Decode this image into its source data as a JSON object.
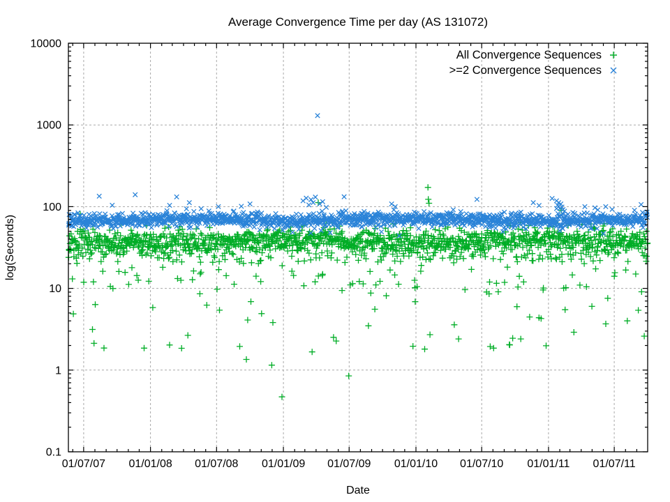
{
  "chart_data": {
    "type": "scatter",
    "title": "Average Convergence Time per day (AS 131072)",
    "xlabel": "Date",
    "ylabel": "log(Seconds)",
    "y_scale": "log",
    "ylim": [
      0.1,
      10000
    ],
    "grid": true,
    "background": "#ffffff",
    "axis_color": "#000000",
    "grid_color": "#a8a8a8",
    "x_start_date": "2007-05-20",
    "x_end_date": "2011-10-01",
    "x_ticks": [
      {
        "label": "01/07/07",
        "date": "2007-07-01"
      },
      {
        "label": "01/01/08",
        "date": "2008-01-01"
      },
      {
        "label": "01/07/08",
        "date": "2008-07-01"
      },
      {
        "label": "01/01/09",
        "date": "2009-01-01"
      },
      {
        "label": "01/07/09",
        "date": "2009-07-01"
      },
      {
        "label": "01/01/10",
        "date": "2010-01-01"
      },
      {
        "label": "01/07/10",
        "date": "2010-07-01"
      },
      {
        "label": "01/01/11",
        "date": "2011-01-01"
      },
      {
        "label": "01/07/11",
        "date": "2011-07-01"
      }
    ],
    "y_ticks": [
      {
        "label": "10000",
        "value": 10000
      },
      {
        "label": "1000",
        "value": 1000
      },
      {
        "label": "100",
        "value": 100
      },
      {
        "label": "10",
        "value": 10
      },
      {
        "label": "1",
        "value": 1
      },
      {
        "label": "0.1",
        "value": 0.1
      }
    ],
    "legend": {
      "position": "top-right-inside"
    },
    "series": [
      {
        "name": "All Convergence Sequences",
        "marker": "plus",
        "color": "#00AD26",
        "count": 1560,
        "seed": 91,
        "band": {
          "center_seconds": 38,
          "log10_sigma": 0.075,
          "drift_amp": 0.04,
          "drift_period_days": 680,
          "drift_phase": 2.0
        },
        "outliers": [
          {
            "prob": 0.1,
            "range": [
              21,
              33
            ]
          },
          {
            "prob": 0.065,
            "range": [
              9.5,
              26
            ]
          },
          {
            "prob": 0.034,
            "range": [
              1.6,
              9.5
            ]
          },
          {
            "prob": 0.004,
            "range": [
              55,
              95
            ]
          }
        ],
        "extra_points": [
          {
            "date": "2009-04-07",
            "value": 112
          },
          {
            "date": "2010-02-03",
            "value": 172
          },
          {
            "date": "2010-02-04",
            "value": 123
          },
          {
            "date": "2010-02-06",
            "value": 110
          },
          {
            "date": "2011-02-05",
            "value": 90
          },
          {
            "date": "2008-09-21",
            "value": 1.35
          },
          {
            "date": "2008-11-30",
            "value": 1.15
          },
          {
            "date": "2008-12-28",
            "value": 0.47
          },
          {
            "date": "2009-06-30",
            "value": 0.85
          }
        ]
      },
      {
        "name": ">=2 Convergence Sequences",
        "marker": "cross",
        "color": "#2A83D8",
        "count": 1500,
        "seed": 47,
        "band": {
          "center_seconds": 69,
          "log10_sigma": 0.043,
          "drift_amp": 0.035,
          "drift_period_days": 620,
          "drift_phase": 4.2
        },
        "outliers": [
          {
            "prob": 0.005,
            "range": [
              92,
              135
            ]
          },
          {
            "prob": 0.004,
            "range": [
              43,
              53
            ]
          }
        ],
        "extra_points": [
          {
            "date": "2007-11-20",
            "value": 140
          },
          {
            "date": "2008-04-17",
            "value": 112
          },
          {
            "date": "2008-07-06",
            "value": 100
          },
          {
            "date": "2009-02-24",
            "value": 118
          },
          {
            "date": "2009-03-05",
            "value": 127
          },
          {
            "date": "2009-03-12",
            "value": 105
          },
          {
            "date": "2009-03-18",
            "value": 122
          },
          {
            "date": "2009-03-24",
            "value": 112
          },
          {
            "date": "2009-03-30",
            "value": 131
          },
          {
            "date": "2009-04-05",
            "value": 1300
          },
          {
            "date": "2009-04-11",
            "value": 108
          },
          {
            "date": "2009-04-19",
            "value": 115
          },
          {
            "date": "2009-04-29",
            "value": 98
          },
          {
            "date": "2009-10-26",
            "value": 108
          },
          {
            "date": "2009-11-05",
            "value": 100
          },
          {
            "date": "2010-11-20",
            "value": 112
          },
          {
            "date": "2011-01-11",
            "value": 126
          },
          {
            "date": "2011-01-23",
            "value": 118
          },
          {
            "date": "2011-01-26",
            "value": 104
          },
          {
            "date": "2011-01-29",
            "value": 112
          },
          {
            "date": "2011-02-01",
            "value": 95
          },
          {
            "date": "2011-02-04",
            "value": 108
          },
          {
            "date": "2011-02-07",
            "value": 99
          },
          {
            "date": "2011-02-10",
            "value": 92
          },
          {
            "date": "2011-02-14",
            "value": 88
          },
          {
            "date": "2011-04-11",
            "value": 100
          },
          {
            "date": "2011-05-09",
            "value": 97
          },
          {
            "date": "2011-09-13",
            "value": 106
          }
        ]
      }
    ]
  }
}
